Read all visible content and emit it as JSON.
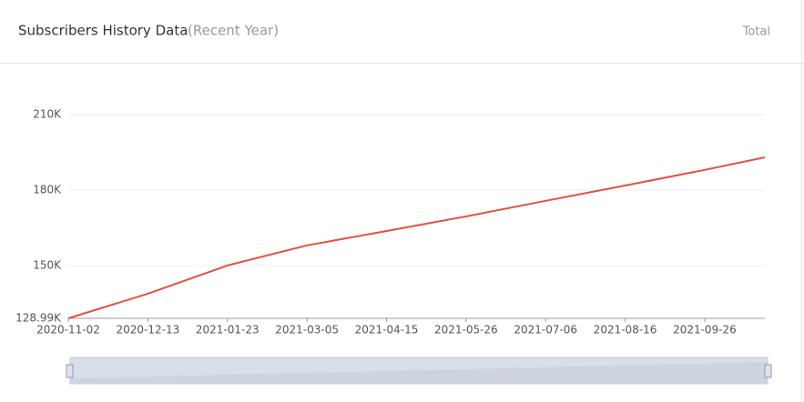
{
  "header": {
    "title": "Subscribers History Data",
    "subtitle": "(Recent Year)",
    "mode": "Total"
  },
  "chart_data": {
    "type": "line",
    "x": [
      "2020-11-02",
      "2020-12-13",
      "2021-01-23",
      "2021-03-05",
      "2021-04-15",
      "2021-05-26",
      "2021-07-06",
      "2021-08-16",
      "2021-09-26",
      "2021-10-27"
    ],
    "values": [
      129000,
      138800,
      150000,
      158000,
      163700,
      169500,
      175700,
      181800,
      188000,
      193000
    ],
    "color": "#e2513f",
    "xlim": [
      "2020-11-02",
      "2021-10-27"
    ],
    "xticks": [
      "2020-11-02",
      "2020-12-13",
      "2021-01-23",
      "2021-03-05",
      "2021-04-15",
      "2021-05-26",
      "2021-07-06",
      "2021-08-16",
      "2021-09-26"
    ],
    "ylim": [
      128990,
      210000
    ],
    "yticks": [
      {
        "value": 128990,
        "label": "128.99K"
      },
      {
        "value": 150000,
        "label": "150K"
      },
      {
        "value": 180000,
        "label": "180K"
      },
      {
        "value": 210000,
        "label": "210K"
      }
    ],
    "grid": true
  }
}
